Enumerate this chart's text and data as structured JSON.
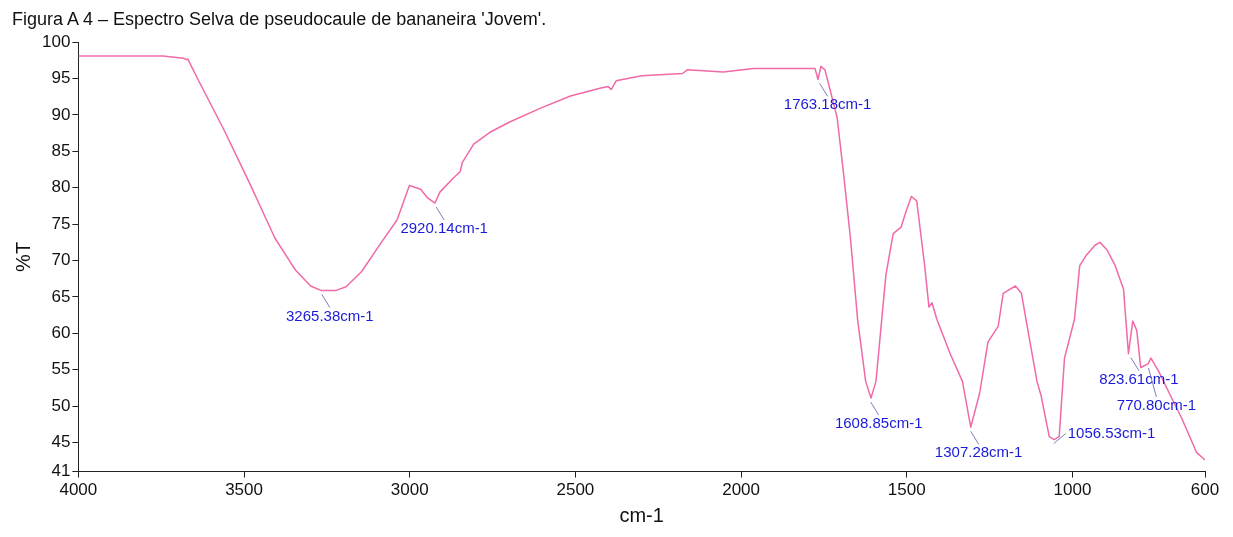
{
  "chart_data": {
    "type": "line",
    "title": "Figura A 4 – Espectro Selva de pseudocaule de bananeira 'Jovem'.",
    "xlabel": "cm-1",
    "ylabel": "%T",
    "xlim": [
      4000,
      600
    ],
    "xticks": [
      4000,
      3500,
      3000,
      2500,
      2000,
      1500,
      1000,
      600
    ],
    "ylim": [
      41,
      100
    ],
    "yticks": [
      41,
      45,
      50,
      55,
      60,
      65,
      70,
      75,
      80,
      85,
      90,
      95,
      100
    ],
    "grid": false,
    "legend": false,
    "marker": "none",
    "line_style": "solid",
    "series": [
      {
        "color": "#f06aa8",
        "x": [
          4000,
          3745,
          3683,
          3674,
          3670,
          3637,
          3560,
          3484,
          3407,
          3345,
          3299,
          3268,
          3222,
          3192,
          3145,
          3084,
          3038,
          3001,
          2967,
          2946,
          2924,
          2909,
          2869,
          2848,
          2841,
          2807,
          2755,
          2700,
          2607,
          2515,
          2423,
          2401,
          2392,
          2377,
          2300,
          2177,
          2162,
          2054,
          1962,
          1777,
          1768,
          1759,
          1747,
          1731,
          1710,
          1691,
          1670,
          1648,
          1624,
          1608,
          1593,
          1563,
          1541,
          1517,
          1501,
          1486,
          1470,
          1446,
          1433,
          1424,
          1409,
          1369,
          1332,
          1307,
          1280,
          1255,
          1224,
          1209,
          1194,
          1172,
          1154,
          1132,
          1107,
          1095,
          1070,
          1055,
          1040,
          1024,
          994,
          978,
          957,
          932,
          917,
          895,
          871,
          846,
          831,
          818,
          806,
          794,
          772,
          763,
          739,
          708,
          671,
          625,
          600
        ],
        "values": [
          98.1,
          98.1,
          97.8,
          97.6,
          97.7,
          94.7,
          87.9,
          80.7,
          73.1,
          68.7,
          66.5,
          65.9,
          65.9,
          66.4,
          68.5,
          72.6,
          75.6,
          80.3,
          79.8,
          78.6,
          77.9,
          79.4,
          81.3,
          82.2,
          83.5,
          86.0,
          87.7,
          89.0,
          90.9,
          92.6,
          93.7,
          93.9,
          93.5,
          94.7,
          95.4,
          95.7,
          96.2,
          95.9,
          96.4,
          96.4,
          94.9,
          96.7,
          96.2,
          93.4,
          89.6,
          82.0,
          73.1,
          61.7,
          53.4,
          51.1,
          53.4,
          68.0,
          73.7,
          74.6,
          76.9,
          78.8,
          78.2,
          69.3,
          63.6,
          64.2,
          61.9,
          57.2,
          53.4,
          47.1,
          51.8,
          58.8,
          61.0,
          65.5,
          65.9,
          66.5,
          65.5,
          59.8,
          53.4,
          51.5,
          45.8,
          45.4,
          45.8,
          56.6,
          61.9,
          69.3,
          70.8,
          72.1,
          72.5,
          71.4,
          69.3,
          66.1,
          57.2,
          61.7,
          60.4,
          55.3,
          55.8,
          56.6,
          54.7,
          51.8,
          48.4,
          43.6,
          42.6
        ]
      }
    ],
    "annotations": [
      {
        "text": "3265.38cm-1",
        "x": 3265.38,
        "y": 65.9
      },
      {
        "text": "2920.14cm-1",
        "x": 2920.14,
        "y": 77.9
      },
      {
        "text": "1763.18cm-1",
        "x": 1763.18,
        "y": 94.9
      },
      {
        "text": "1608.85cm-1",
        "x": 1608.85,
        "y": 51.1
      },
      {
        "text": "1307.28cm-1",
        "x": 1307.28,
        "y": 47.1
      },
      {
        "text": "1056.53cm-1",
        "x": 1056.53,
        "y": 45.4
      },
      {
        "text": "823.61cm-1",
        "x": 823.61,
        "y": 57.2
      },
      {
        "text": "770.80cm-1",
        "x": 770.8,
        "y": 55.8
      }
    ]
  }
}
